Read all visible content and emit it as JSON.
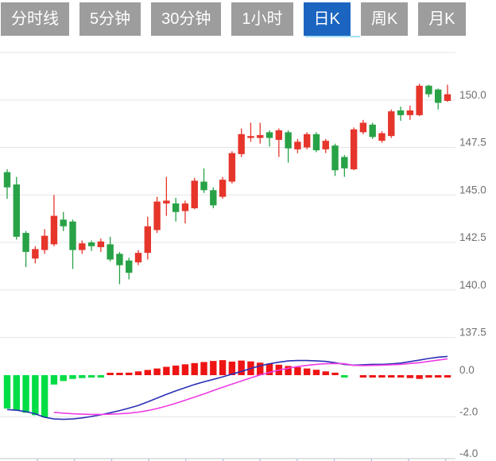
{
  "toolbar": {
    "tabs": [
      {
        "label": "分时线",
        "active": false
      },
      {
        "label": "5分钟",
        "active": false
      },
      {
        "label": "30分钟",
        "active": false
      },
      {
        "label": "1小时",
        "active": false
      },
      {
        "label": "日K",
        "active": true
      },
      {
        "label": "周K",
        "active": false
      },
      {
        "label": "月K",
        "active": false
      }
    ],
    "active_bg": "#1b65c1",
    "inactive_bg": "#9d9d9d",
    "text_color": "#ffffff",
    "active_underline": "#a5dff5"
  },
  "chart_data": {
    "type": "candlestick",
    "description": "Daily K-line price chart with MACD indicator pane",
    "price_axis": {
      "labels": [
        "150.0",
        "147.5",
        "145.0",
        "142.5",
        "140.0",
        "137.5"
      ],
      "values": [
        150.0,
        147.5,
        145.0,
        142.5,
        140.0,
        137.5
      ],
      "grid_values": [
        152.5,
        150.0,
        147.5,
        145.0,
        142.5,
        140.0,
        137.5
      ],
      "range": [
        137.5,
        152.5
      ],
      "grid": "on",
      "position": "right"
    },
    "macd_axis": {
      "labels": [
        "0.0",
        "-2.0",
        "-4.0"
      ],
      "values": [
        0.0,
        -2.0,
        -4.0
      ],
      "grid_values": [
        -2.0
      ],
      "range": [
        -4.0,
        2.0
      ],
      "position": "right"
    },
    "candles_ohlc_note": "each candle is [open, close, high, low]; red=up, green=down",
    "candles": [
      [
        146.2,
        145.4,
        146.35,
        144.8
      ],
      [
        145.55,
        142.8,
        145.95,
        142.65
      ],
      [
        143.0,
        142.0,
        143.1,
        141.2
      ],
      [
        141.65,
        142.15,
        142.3,
        141.4
      ],
      [
        142.1,
        142.85,
        143.2,
        141.9
      ],
      [
        142.4,
        143.9,
        145.0,
        142.3
      ],
      [
        143.7,
        143.35,
        144.1,
        143.1
      ],
      [
        143.6,
        142.1,
        143.7,
        141.1
      ],
      [
        142.1,
        142.45,
        142.6,
        141.9
      ],
      [
        142.5,
        142.3,
        142.6,
        142.05
      ],
      [
        142.25,
        142.55,
        142.7,
        142.0
      ],
      [
        142.4,
        141.6,
        142.8,
        141.5
      ],
      [
        141.9,
        141.3,
        142.0,
        140.3
      ],
      [
        141.55,
        140.9,
        141.7,
        140.55
      ],
      [
        141.45,
        141.95,
        142.1,
        141.3
      ],
      [
        141.95,
        143.35,
        143.85,
        141.6
      ],
      [
        143.15,
        144.65,
        144.9,
        143.0
      ],
      [
        144.55,
        144.7,
        145.95,
        143.9
      ],
      [
        144.55,
        144.1,
        144.85,
        143.6
      ],
      [
        144.15,
        144.55,
        144.7,
        143.5
      ],
      [
        144.3,
        145.75,
        145.9,
        144.25
      ],
      [
        145.7,
        145.25,
        146.4,
        145.1
      ],
      [
        145.25,
        144.45,
        145.4,
        144.3
      ],
      [
        144.9,
        145.8,
        145.95,
        144.8
      ],
      [
        145.7,
        147.2,
        147.3,
        145.6
      ],
      [
        147.15,
        148.2,
        148.5,
        147.0
      ],
      [
        148.0,
        148.1,
        148.8,
        147.8
      ],
      [
        148.0,
        148.15,
        148.8,
        147.7
      ],
      [
        148.3,
        148.0,
        148.4,
        147.55
      ],
      [
        147.9,
        148.4,
        148.5,
        147.0
      ],
      [
        148.3,
        147.45,
        148.4,
        146.7
      ],
      [
        147.4,
        147.8,
        147.95,
        147.2
      ],
      [
        147.5,
        148.2,
        148.3,
        147.4
      ],
      [
        148.2,
        147.35,
        148.3,
        147.25
      ],
      [
        147.4,
        147.85,
        147.95,
        147.2
      ],
      [
        147.6,
        146.3,
        147.7,
        146.0
      ],
      [
        147.0,
        146.4,
        147.1,
        145.95
      ],
      [
        146.35,
        148.45,
        148.55,
        146.3
      ],
      [
        148.3,
        148.8,
        148.95,
        148.2
      ],
      [
        148.7,
        148.05,
        148.8,
        147.95
      ],
      [
        147.85,
        148.25,
        148.35,
        147.75
      ],
      [
        148.1,
        149.4,
        149.5,
        148.0
      ],
      [
        149.45,
        149.2,
        149.65,
        148.9
      ],
      [
        149.2,
        149.45,
        149.7,
        148.95
      ],
      [
        149.2,
        150.75,
        150.85,
        149.15
      ],
      [
        150.75,
        150.3,
        150.8,
        150.15
      ],
      [
        150.55,
        149.85,
        150.6,
        149.5
      ],
      [
        149.95,
        150.3,
        150.8,
        149.9
      ]
    ],
    "macd": {
      "hist_note": "[value, color] where u=red bar, d=green bar",
      "hist": [
        [
          -1.6,
          "d"
        ],
        [
          -1.7,
          "d"
        ],
        [
          -1.8,
          "d"
        ],
        [
          -1.92,
          "d"
        ],
        [
          -2.02,
          "d"
        ],
        [
          -0.45,
          "d"
        ],
        [
          -0.28,
          "d"
        ],
        [
          -0.18,
          "d"
        ],
        [
          -0.14,
          "d"
        ],
        [
          -0.1,
          "d"
        ],
        [
          -0.07,
          "d"
        ],
        [
          0.05,
          "u"
        ],
        [
          0.08,
          "u"
        ],
        [
          0.12,
          "u"
        ],
        [
          0.18,
          "u"
        ],
        [
          0.25,
          "u"
        ],
        [
          0.32,
          "u"
        ],
        [
          0.4,
          "u"
        ],
        [
          0.46,
          "u"
        ],
        [
          0.52,
          "u"
        ],
        [
          0.58,
          "u"
        ],
        [
          0.63,
          "u"
        ],
        [
          0.68,
          "u"
        ],
        [
          0.72,
          "u"
        ],
        [
          0.65,
          "u"
        ],
        [
          0.7,
          "u"
        ],
        [
          0.66,
          "u"
        ],
        [
          0.6,
          "u"
        ],
        [
          0.55,
          "u"
        ],
        [
          0.5,
          "u"
        ],
        [
          0.44,
          "u"
        ],
        [
          0.38,
          "u"
        ],
        [
          0.32,
          "u"
        ],
        [
          0.26,
          "u"
        ],
        [
          0.18,
          "u"
        ],
        [
          0.12,
          "u"
        ],
        [
          -0.06,
          "d"
        ],
        [
          0.0,
          "u"
        ],
        [
          -0.06,
          "u"
        ],
        [
          -0.07,
          "u"
        ],
        [
          -0.06,
          "u"
        ],
        [
          -0.08,
          "u"
        ],
        [
          -0.1,
          "u"
        ],
        [
          -0.14,
          "u"
        ],
        [
          -0.18,
          "u"
        ],
        [
          -0.12,
          "u"
        ],
        [
          -0.1,
          "u"
        ],
        [
          -0.08,
          "u"
        ]
      ],
      "dif": [
        -1.65,
        -1.68,
        -1.75,
        -1.85,
        -2.02,
        -2.1,
        -2.12,
        -2.1,
        -2.05,
        -1.98,
        -1.9,
        -1.8,
        -1.7,
        -1.58,
        -1.45,
        -1.28,
        -1.1,
        -0.92,
        -0.75,
        -0.6,
        -0.45,
        -0.32,
        -0.2,
        -0.08,
        0.05,
        0.18,
        0.32,
        0.45,
        0.55,
        0.62,
        0.68,
        0.7,
        0.7,
        0.68,
        0.66,
        0.6,
        0.52,
        0.48,
        0.5,
        0.52,
        0.52,
        0.54,
        0.58,
        0.65,
        0.72,
        0.8,
        0.86,
        0.9
      ],
      "dea_start": 5,
      "dea": [
        -1.78,
        -1.82,
        -1.85,
        -1.87,
        -1.88,
        -1.88,
        -1.87,
        -1.85,
        -1.82,
        -1.77,
        -1.7,
        -1.6,
        -1.48,
        -1.35,
        -1.2,
        -1.05,
        -0.9,
        -0.74,
        -0.58,
        -0.43,
        -0.28,
        -0.13,
        0.01,
        0.13,
        0.24,
        0.33,
        0.41,
        0.47,
        0.52,
        0.55,
        0.56,
        0.55,
        0.47,
        0.46,
        0.47,
        0.48,
        0.5,
        0.52,
        0.56,
        0.6,
        0.66,
        0.72,
        0.78
      ]
    },
    "colors": {
      "up": "#e6352b",
      "down": "#28a246",
      "hist_up": "#ee1414",
      "hist_down": "#00dd45",
      "dif": "#2b2fb5",
      "dea": "#ef3be4",
      "grid": "#e5e5e5",
      "axis_text": "#6f6f6f",
      "axis_line": "#d9d9d9",
      "tick": "#b9c9e0"
    }
  }
}
